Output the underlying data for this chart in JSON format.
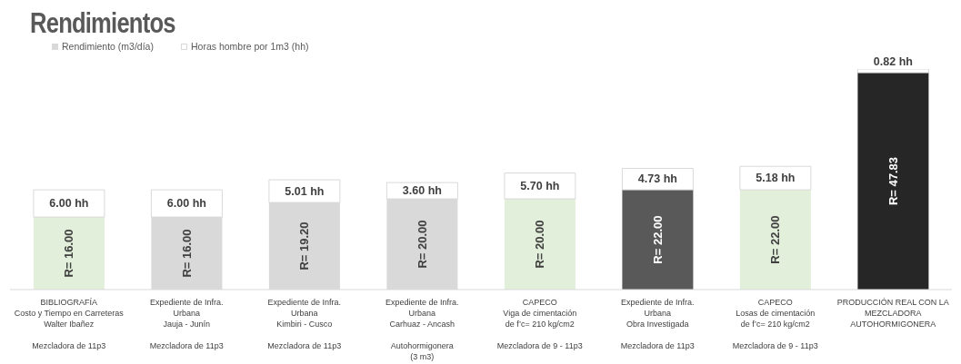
{
  "chart_data": {
    "type": "bar",
    "title": "Rendimientos",
    "stacked": true,
    "legend": "top left",
    "categories": [
      "BIBLIOGRAFÍA\nCosto y Tiempo en Carreteras\nWalter Ibañez\n\nMezcladora de 11p3",
      "Expediente de Infra.\nUrbana\nJauja - Junín\n\nMezcladora de 11p3",
      "Expediente de Infra.\nUrbana\nKimbiri - Cusco\n\nMezcladora de 11p3",
      "Expediente de Infra.\nUrbana\nCarhuaz - Ancash\n\nAutohormigonera\n(3 m3)",
      "CAPECO\nViga de cimentación\nde f’c= 210 kg/cm2\n\nMezcladora de 9 - 11p3",
      "Expediente de Infra.\nUrbana\nObra Investigada\n\nMezcladora de 11p3",
      "CAPECO\nLosas de cimentación\nde f’c= 210 kg/cm2\n\nMezcladora de 9 - 11p3",
      "PRODUCCIÓN REAL CON LA\nMEZCLADORA\nAUTOHORMIGONERA"
    ],
    "series": [
      {
        "name": "Rendimiento (m3/día)",
        "color": "#d9d9d9",
        "colors": [
          "#e2efda",
          "#d9d9d9",
          "#d9d9d9",
          "#d9d9d9",
          "#e2efda",
          "#595959",
          "#e2efda",
          "#262626"
        ],
        "values": [
          16,
          16,
          19.2,
          20,
          20,
          22,
          22,
          47.83
        ],
        "value_labels": [
          "R= 16.00",
          "R= 16.00",
          "R= 19.20",
          "R= 20.00",
          "R= 20.00",
          "R= 22.00",
          "R= 22.00",
          "R= 47.83"
        ]
      },
      {
        "name": "Horas hombre por 1m3 (hh)",
        "color": "#ffffff",
        "values": [
          6,
          6,
          5.01,
          3.6,
          5.7,
          4.73,
          5.18,
          0.82
        ],
        "value_labels": [
          "6.00 hh",
          "6.00 hh",
          "5.01 hh",
          "3.60 hh",
          "5.70 hh",
          "4.73 hh",
          "5.18 hh",
          "0.82 hh"
        ]
      }
    ]
  }
}
